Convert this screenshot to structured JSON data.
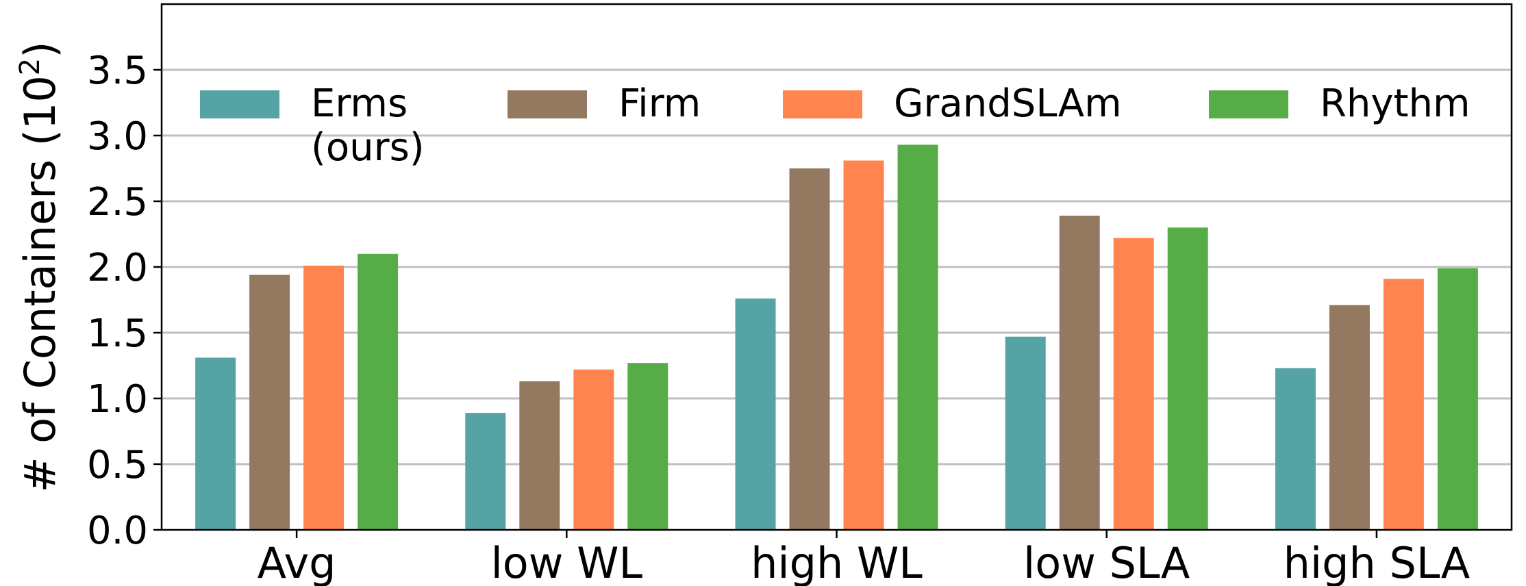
{
  "chart_data": {
    "type": "bar",
    "title": "",
    "xlabel": "",
    "ylabel": "# of Containers (10",
    "ylabel_superscript": "2",
    "ylabel_suffix": ")",
    "ylim": [
      0,
      4.0
    ],
    "yticks": [
      0.0,
      0.5,
      1.0,
      1.5,
      2.0,
      2.5,
      3.0,
      3.5
    ],
    "ytick_labels": [
      "0.0",
      "0.5",
      "1.0",
      "1.5",
      "2.0",
      "2.5",
      "3.0",
      "3.5"
    ],
    "grid": "horizontal",
    "legend_position": "top",
    "categories": [
      "Avg",
      "low WL",
      "high WL",
      "low SLA",
      "high SLA"
    ],
    "series": [
      {
        "name": "Erms\n(ours)",
        "legend_lines": [
          "Erms",
          "(ours)"
        ],
        "color": "#56a3a6",
        "values": [
          1.31,
          0.89,
          1.76,
          1.47,
          1.23
        ]
      },
      {
        "name": "Firm",
        "legend_lines": [
          "Firm"
        ],
        "color": "#927960",
        "values": [
          1.94,
          1.13,
          2.75,
          2.39,
          1.71
        ]
      },
      {
        "name": "GrandSLAm",
        "legend_lines": [
          "GrandSLAm"
        ],
        "color": "#ff8450",
        "values": [
          2.01,
          1.22,
          2.81,
          2.22,
          1.91
        ]
      },
      {
        "name": "Rhythm",
        "legend_lines": [
          "Rhythm"
        ],
        "color": "#56ad47",
        "values": [
          2.1,
          1.27,
          2.93,
          2.3,
          1.99
        ]
      }
    ]
  }
}
